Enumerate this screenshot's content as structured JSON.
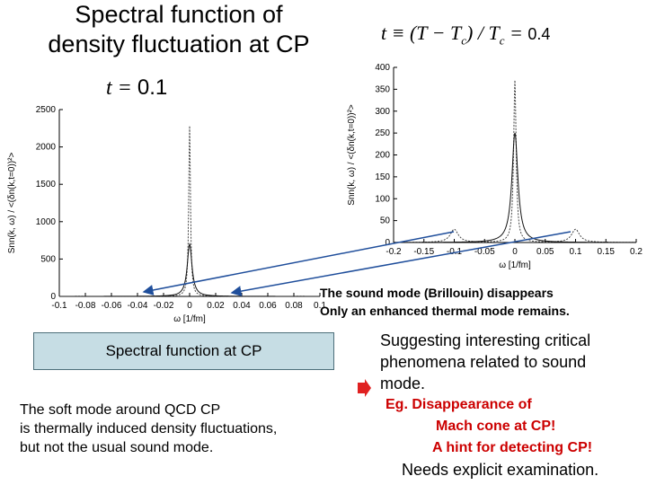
{
  "title": {
    "line1": "Spectral function of",
    "line2": "density fluctuation at  CP"
  },
  "formula": {
    "t": "t",
    "eq": " ≡ (",
    "T": "T",
    "minus": " − ",
    "Tc": "T",
    "c_sub": "c",
    "div": ") / ",
    "Tc2": "T",
    "c_sub2": "c",
    "eq2": " = ",
    "value": "0.4"
  },
  "left_label": {
    "t": "t",
    "eq": " = ",
    "value": "0.1"
  },
  "chart_data": [
    {
      "type": "line",
      "title": "",
      "xlabel": "ω [1/fm]",
      "ylabel": "Snn(k, ω) / <(δn(k,t=0))²>",
      "xlim": [
        -0.1,
        0.1
      ],
      "ylim": [
        0,
        2500
      ],
      "x_ticks": [
        "-0.1",
        "-0.08",
        "-0.06",
        "-0.04",
        "-0.02",
        "0",
        "0.02",
        "0.04",
        "0.06",
        "0.08",
        "0.1"
      ],
      "y_ticks": [
        "0",
        "500",
        "1000",
        "1500",
        "2000",
        "2500"
      ],
      "series": [
        {
          "peaks": [
            {
              "x": 0,
              "y": 2280
            }
          ],
          "sound_peaks": [
            {
              "x": -0.085,
              "y": 2
            },
            {
              "x": 0.085,
              "y": 2
            }
          ]
        },
        {
          "peaks": [
            {
              "x": 0,
              "y": 700
            }
          ]
        }
      ]
    },
    {
      "type": "line",
      "title": "",
      "xlabel": "ω [1/fm]",
      "ylabel": "Snn(k, ω) / <(δn(k,t=0))²>",
      "xlim": [
        -0.2,
        0.2
      ],
      "ylim": [
        0,
        400
      ],
      "x_ticks": [
        "-0.2",
        "-0.15",
        "-0.1",
        "-0.05",
        "0",
        "0.05",
        "0.1",
        "0.15",
        "0.2"
      ],
      "y_ticks": [
        "0",
        "50",
        "100",
        "150",
        "200",
        "250",
        "300",
        "350",
        "400"
      ],
      "series": [
        {
          "peaks": [
            {
              "x": 0,
              "y": 370
            }
          ],
          "sound_peaks": [
            {
              "x": -0.1,
              "y": 30
            },
            {
              "x": 0.1,
              "y": 30
            }
          ]
        },
        {
          "peaks": [
            {
              "x": 0,
              "y": 250
            }
          ]
        }
      ]
    }
  ],
  "sound_text": {
    "line1": "The sound mode (Brillouin) disappears",
    "line2": "Only an enhanced thermal mode remains."
  },
  "box_text": "Spectral function at  CP",
  "soft_text": {
    "line1": "The soft mode around QCD CP",
    "line2": "is thermally induced density fluctuations,",
    "line3": "but not the usual sound mode."
  },
  "right_text": {
    "line1": "Suggesting  interesting critical",
    "line2": "phenomena related to sound",
    "line3": "mode.",
    "line4": "Eg. Disappearance of",
    "line5": "Mach cone at CP!",
    "line6": "A hint for detecting CP!",
    "line7": "Needs explicit examination."
  },
  "colors": {
    "box_fill": "#c6dde4",
    "accent_red": "#cc0000",
    "arrow_blue": "#1f4e9b"
  }
}
